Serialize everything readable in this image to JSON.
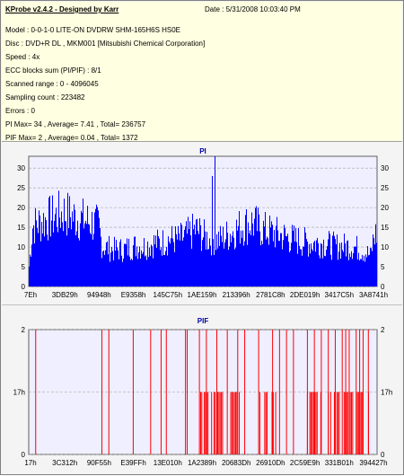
{
  "header": {
    "title": "KProbe v2.4.2 - Designed by Karr",
    "date_label": "Date : 5/31/2008 10:03:40 PM"
  },
  "info_lines": [
    "Model : 0-0-1-0 LITE-ON DVDRW SHM-165H6S HS0E",
    "Disc : DVD+R DL , MKM001 [Mitsubishi Chemical Corporation]",
    "Speed : 4x",
    "ECC blocks sum (PI/PIF) : 8/1",
    "Scanned range : 0 - 4096045",
    "Sampling count : 223482",
    "Errors : 0",
    "PI Max= 34 , Average= 7.41 , Total= 236757",
    "PIF Max= 2 , Average= 0.04 , Total= 1372"
  ],
  "colors": {
    "pi_bar": "#0000ff",
    "pif_bar": "#ff0000",
    "plot_bg": "#efefff",
    "grid": "#a0a0a0",
    "title_blue": "#0000a0"
  },
  "chart_data": [
    {
      "type": "bar",
      "title": "PI",
      "ylim": [
        0,
        33
      ],
      "yticks": [
        0,
        5,
        10,
        15,
        20,
        25,
        30
      ],
      "xtick_labels": [
        "7Eh",
        "3DB29h",
        "94948h",
        "E9358h",
        "145C75h",
        "1AE159h",
        "213396h",
        "2781C8h",
        "2DE019h",
        "3417C5h",
        "3A8741h"
      ],
      "grid": true,
      "profile_x": [
        0,
        0.01,
        0.03,
        0.05,
        0.08,
        0.1,
        0.12,
        0.15,
        0.18,
        0.2,
        0.21,
        0.24,
        0.27,
        0.3,
        0.33,
        0.36,
        0.38,
        0.4,
        0.43,
        0.45,
        0.48,
        0.5,
        0.52,
        0.55,
        0.58,
        0.61,
        0.64,
        0.67,
        0.7,
        0.73,
        0.76,
        0.8,
        0.84,
        0.88,
        0.9,
        0.93,
        0.95,
        0.97,
        0.98,
        0.99,
        1.0
      ],
      "profile_y": [
        6,
        18,
        19,
        20,
        21,
        22,
        21,
        20,
        19,
        18,
        12,
        11,
        11,
        12,
        12,
        13,
        13,
        14,
        14,
        15,
        17,
        15,
        14,
        14,
        16,
        18,
        19,
        17,
        16,
        15,
        14,
        13,
        13,
        12,
        12,
        12,
        11,
        10,
        9,
        15,
        16
      ],
      "spikes": [
        {
          "x": 0.533,
          "y": 34
        },
        {
          "x": 0.525,
          "y": 28
        }
      ]
    },
    {
      "type": "bar",
      "title": "PIF",
      "ylim": [
        0,
        2
      ],
      "yticks": [
        0,
        1,
        2
      ],
      "ytick_labels": [
        "0",
        "17h",
        "2"
      ],
      "xtick_labels": [
        "17h",
        "3C312h",
        "90F55h",
        "E39FFh",
        "13E010h",
        "1A2389h",
        "20683Dh",
        "26910Dh",
        "2C59E9h",
        "331B01h",
        "394427h"
      ],
      "grid": true,
      "bars_level2": [
        0.02,
        0.21,
        0.23,
        0.3,
        0.35,
        0.38,
        0.395,
        0.45,
        0.455,
        0.49,
        0.51,
        0.54,
        0.57,
        0.6,
        0.62,
        0.66,
        0.7,
        0.72,
        0.74,
        0.76,
        0.8,
        0.82,
        0.84,
        0.86,
        0.88,
        0.9,
        0.91,
        0.92,
        0.94,
        0.95,
        0.96,
        0.975
      ],
      "bars_level1_ranges": [
        [
          0.49,
          0.56
        ],
        [
          0.58,
          0.61
        ],
        [
          0.66,
          0.72
        ],
        [
          0.8,
          0.84
        ],
        [
          0.86,
          0.98
        ]
      ]
    }
  ]
}
